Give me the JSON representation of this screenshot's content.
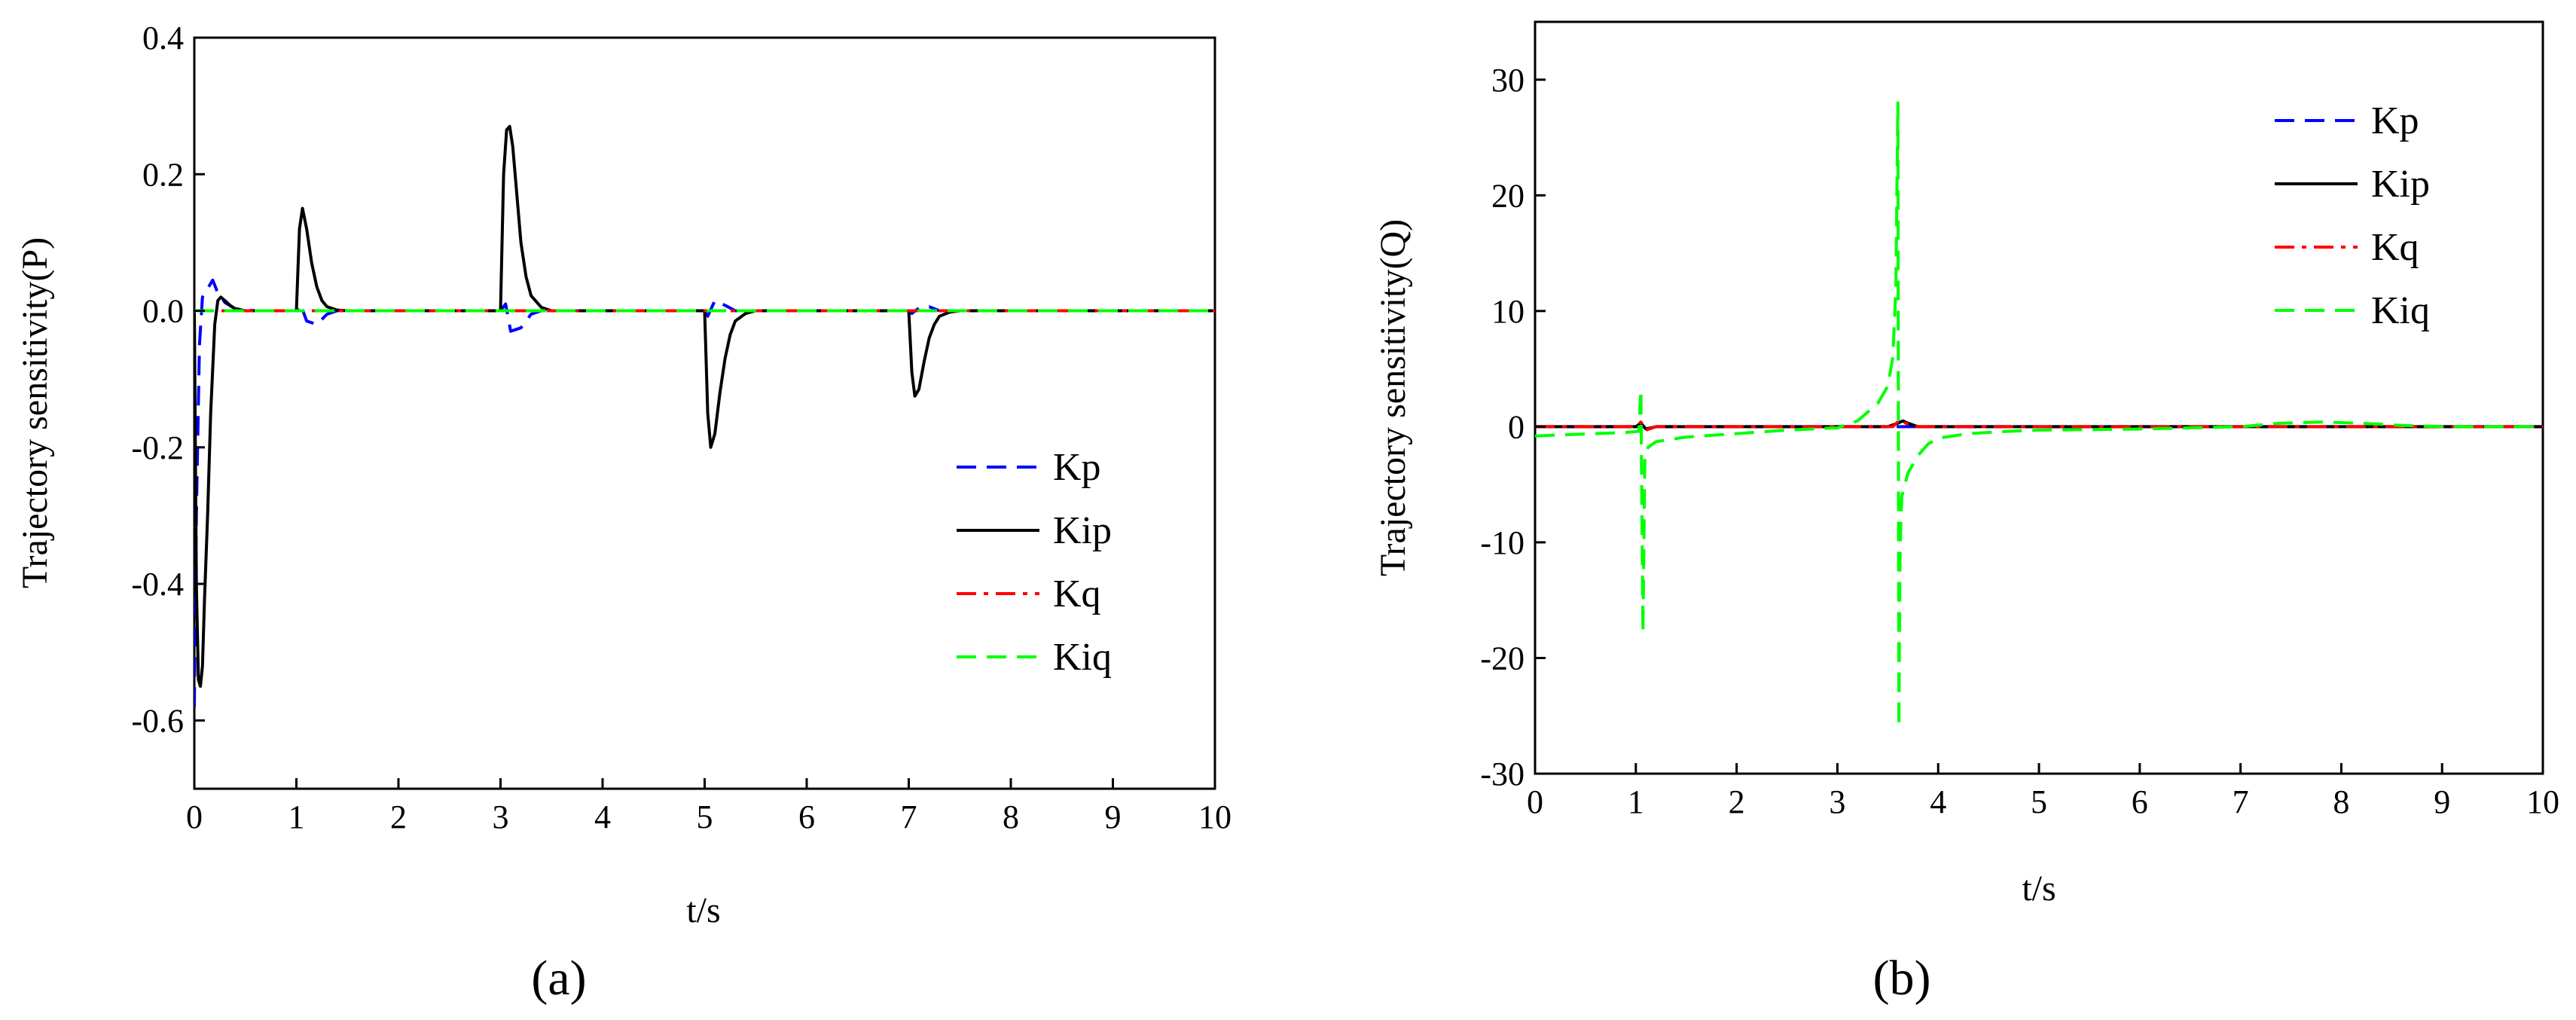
{
  "chart_data": [
    {
      "type": "line",
      "panel_label": "(a)",
      "xlabel": "t/s",
      "ylabel": "Trajectory sensitivity(P)",
      "xlim": [
        0,
        10
      ],
      "ylim": [
        -0.7,
        0.4
      ],
      "xticks": [
        "0",
        "1",
        "2",
        "3",
        "4",
        "5",
        "6",
        "7",
        "8",
        "9",
        "10"
      ],
      "yticks": [
        "-0.6",
        "-0.4",
        "-0.2",
        "0.0",
        "0.2",
        "0.4"
      ],
      "ytick_values": [
        -0.6,
        -0.4,
        -0.2,
        0.0,
        0.2,
        0.4
      ],
      "legend_position": "right-lower",
      "series": [
        {
          "name": "Kp",
          "color": "#0000ff",
          "dash": "dashed",
          "x": [
            0,
            0.02,
            0.05,
            0.08,
            0.12,
            0.18,
            0.22,
            0.3,
            0.4,
            0.6,
            1.0,
            1.04,
            1.1,
            1.2,
            1.3,
            1.4,
            3.0,
            3.05,
            3.1,
            3.2,
            3.3,
            3.4,
            5.0,
            5.03,
            5.1,
            5.2,
            5.3,
            7.0,
            7.03,
            7.1,
            7.2,
            7.3,
            10
          ],
          "y": [
            -0.58,
            -0.3,
            -0.05,
            0.02,
            0.03,
            0.045,
            0.03,
            0.012,
            0.003,
            0,
            0,
            0.01,
            -0.015,
            -0.02,
            -0.005,
            0,
            0,
            0.01,
            -0.03,
            -0.025,
            -0.005,
            0,
            0,
            -0.008,
            0.015,
            0.008,
            0,
            0,
            -0.004,
            0.004,
            0.006,
            0,
            0
          ]
        },
        {
          "name": "Kip",
          "color": "#000000",
          "dash": "solid",
          "x": [
            0,
            0.02,
            0.04,
            0.06,
            0.08,
            0.1,
            0.13,
            0.16,
            0.2,
            0.23,
            0.26,
            0.3,
            0.35,
            0.4,
            0.5,
            0.6,
            1.0,
            1.03,
            1.06,
            1.1,
            1.15,
            1.2,
            1.25,
            1.3,
            1.4,
            1.5,
            3.0,
            3.03,
            3.06,
            3.09,
            3.12,
            3.16,
            3.2,
            3.25,
            3.3,
            3.4,
            3.5,
            5.0,
            5.03,
            5.06,
            5.1,
            5.15,
            5.2,
            5.25,
            5.3,
            5.4,
            5.5,
            7.0,
            7.03,
            7.06,
            7.1,
            7.15,
            7.2,
            7.25,
            7.3,
            7.4,
            7.5,
            10
          ],
          "y": [
            0,
            -0.4,
            -0.54,
            -0.55,
            -0.52,
            -0.42,
            -0.3,
            -0.15,
            -0.02,
            0.015,
            0.02,
            0.015,
            0.008,
            0.003,
            0,
            0,
            0,
            0.12,
            0.15,
            0.12,
            0.07,
            0.035,
            0.015,
            0.006,
            0.001,
            0,
            0,
            0.2,
            0.265,
            0.27,
            0.24,
            0.17,
            0.1,
            0.05,
            0.022,
            0.005,
            0,
            0,
            -0.15,
            -0.2,
            -0.18,
            -0.12,
            -0.07,
            -0.035,
            -0.015,
            -0.004,
            0,
            0,
            -0.09,
            -0.125,
            -0.115,
            -0.075,
            -0.04,
            -0.02,
            -0.008,
            -0.002,
            0,
            0
          ]
        },
        {
          "name": "Kq",
          "color": "#ff0000",
          "dash": "dashdot",
          "x": [
            0,
            10
          ],
          "y": [
            0,
            0
          ]
        },
        {
          "name": "Kiq",
          "color": "#00ff00",
          "dash": "dashed",
          "x": [
            0,
            10
          ],
          "y": [
            0,
            0
          ]
        }
      ]
    },
    {
      "type": "line",
      "panel_label": "(b)",
      "xlabel": "t/s",
      "ylabel": "Trajectory sensitivity(Q)",
      "xlim": [
        0,
        10
      ],
      "ylim": [
        -30,
        35
      ],
      "xticks": [
        "0",
        "1",
        "2",
        "3",
        "4",
        "5",
        "6",
        "7",
        "8",
        "9",
        "10"
      ],
      "yticks": [
        "-30",
        "-20",
        "-10",
        "0",
        "10",
        "20",
        "30"
      ],
      "ytick_values": [
        -30,
        -20,
        -10,
        0,
        10,
        20,
        30
      ],
      "legend_position": "top-right",
      "series": [
        {
          "name": "Kp",
          "color": "#0000ff",
          "dash": "dashed",
          "x": [
            0,
            10
          ],
          "y": [
            0,
            0
          ]
        },
        {
          "name": "Kip",
          "color": "#000000",
          "dash": "solid",
          "x": [
            0,
            1.0,
            1.05,
            1.1,
            1.2,
            3.5,
            3.6,
            3.65,
            3.7,
            3.8,
            10
          ],
          "y": [
            0,
            0,
            0.3,
            -0.2,
            0,
            0,
            0.3,
            0.5,
            0.3,
            0,
            0
          ]
        },
        {
          "name": "Kq",
          "color": "#ff0000",
          "dash": "dashdot",
          "x": [
            0,
            1.0,
            1.05,
            1.1,
            1.2,
            3.55,
            3.62,
            3.68,
            3.75,
            10
          ],
          "y": [
            0,
            0,
            0.4,
            -0.3,
            0,
            0,
            0.6,
            0.3,
            0,
            0
          ]
        },
        {
          "name": "Kiq",
          "color": "#00ff00",
          "dash": "dashed",
          "x": [
            0,
            0.3,
            0.6,
            0.9,
            1.03,
            1.05,
            1.07,
            1.09,
            1.12,
            1.2,
            1.5,
            2.0,
            2.5,
            3.0,
            3.2,
            3.4,
            3.5,
            3.55,
            3.58,
            3.6,
            3.61,
            3.62,
            3.63,
            3.64,
            3.7,
            3.8,
            3.9,
            4.0,
            4.3,
            4.7,
            5.0,
            6.0,
            7.0,
            7.4,
            7.8,
            8.2,
            8.6,
            9.0,
            10
          ],
          "y": [
            -0.8,
            -0.7,
            -0.6,
            -0.5,
            -0.4,
            3.2,
            -17.8,
            -2.5,
            -1.8,
            -1.3,
            -0.9,
            -0.6,
            -0.3,
            -0.1,
            0.5,
            2.0,
            3.5,
            6.0,
            12.0,
            28.0,
            -26.0,
            -12.0,
            -8.0,
            -6.0,
            -4.0,
            -2.5,
            -1.5,
            -1.0,
            -0.6,
            -0.4,
            -0.3,
            -0.2,
            0,
            0.3,
            0.4,
            0.3,
            0.1,
            0,
            0
          ]
        }
      ]
    }
  ]
}
